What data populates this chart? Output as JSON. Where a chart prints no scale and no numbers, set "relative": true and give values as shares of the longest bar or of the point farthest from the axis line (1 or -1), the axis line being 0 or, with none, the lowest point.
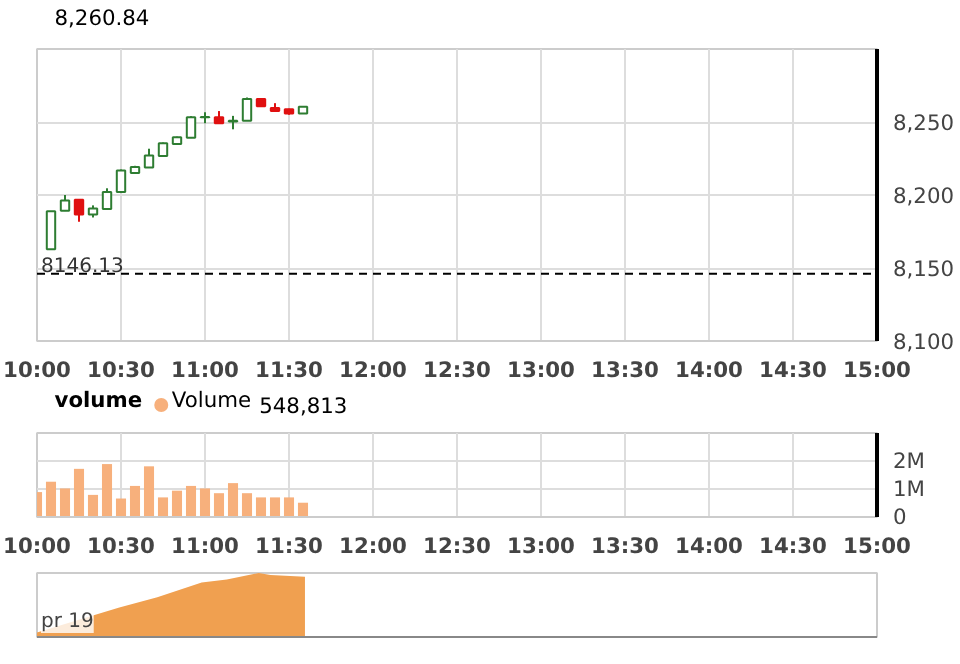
{
  "chart_data": [
    {
      "type": "candlestick",
      "x": [
        10.0833,
        10.1667,
        10.25,
        10.3333,
        10.4167,
        10.5,
        10.5833,
        10.6667,
        10.75,
        10.8333,
        10.9167,
        11.0,
        11.0833,
        11.1667,
        11.25,
        11.3333,
        11.4167,
        11.5,
        11.5833
      ],
      "ohlc": [
        [
          8162.9,
          8188.8,
          8162.9,
          8188.8
        ],
        [
          8189.2,
          8200,
          8189,
          8196.3
        ],
        [
          8196.7,
          8196.7,
          8181.7,
          8186.7
        ],
        [
          8186.7,
          8192.9,
          8184.6,
          8190.8
        ],
        [
          8190.4,
          8204.6,
          8190.4,
          8202.1
        ],
        [
          8202,
          8217.5,
          8202,
          8216.7
        ],
        [
          8215,
          8220,
          8215,
          8219.2
        ],
        [
          8218.8,
          8231.7,
          8218.8,
          8227.1
        ],
        [
          8226.7,
          8236,
          8226.7,
          8235.4
        ],
        [
          8235,
          8240,
          8235,
          8239.6
        ],
        [
          8239.2,
          8254,
          8239,
          8253.3
        ],
        [
          8253.3,
          8256.7,
          8249.2,
          8253.5
        ],
        [
          8253.3,
          8257.5,
          8249,
          8249.2
        ],
        [
          8250.4,
          8254.2,
          8245,
          8250.8
        ],
        [
          8250.8,
          8266.7,
          8250.8,
          8265.8
        ],
        [
          8265.8,
          8265.8,
          8260.8,
          8260.8
        ],
        [
          8259.6,
          8262.9,
          8257,
          8257.5
        ],
        [
          8258.8,
          8259,
          8255,
          8255.8
        ],
        [
          8255.8,
          8260.8,
          8255.8,
          8260.4
        ]
      ],
      "xlim": [
        10,
        15
      ],
      "xticks": [
        {
          "value": 10,
          "label": "10:00"
        },
        {
          "value": 10.5,
          "label": "10:30"
        },
        {
          "value": 11,
          "label": "11:00"
        },
        {
          "value": 11.5,
          "label": "11:30"
        },
        {
          "value": 12,
          "label": "12:00"
        },
        {
          "value": 12.5,
          "label": "12:30"
        },
        {
          "value": 13,
          "label": "13:00"
        },
        {
          "value": 13.5,
          "label": "13:30"
        },
        {
          "value": 14,
          "label": "14:00"
        },
        {
          "value": 14.5,
          "label": "14:30"
        },
        {
          "value": 15,
          "label": "15:00"
        }
      ],
      "ylim": [
        8100,
        8300
      ],
      "yticks": [
        {
          "value": 8100,
          "label": "8,100"
        },
        {
          "value": 8150,
          "label": "8,150"
        },
        {
          "value": 8200,
          "label": "8,200"
        },
        {
          "value": 8250,
          "label": "8,250"
        }
      ],
      "ref_lines": [
        {
          "axis": "y",
          "value": 8146.13,
          "label": "8146.13",
          "line_style": "dashed",
          "color": "#000000"
        }
      ],
      "annotations": [
        "8,260.84"
      ],
      "grid": true
    },
    {
      "type": "bar",
      "title": "volume",
      "x": [
        10.0,
        10.0833,
        10.1667,
        10.25,
        10.3333,
        10.4167,
        10.5,
        10.5833,
        10.6667,
        10.75,
        10.8333,
        10.9167,
        11.0,
        11.0833,
        11.1667,
        11.25,
        11.3333,
        11.4167,
        11.5,
        11.5833
      ],
      "series": [
        {
          "name": "Volume",
          "color": "#f7b07c",
          "values": [
            890000,
            1260000,
            1020000,
            1720000,
            790000,
            1890000,
            660000,
            1110000,
            1810000,
            700000,
            940000,
            1110000,
            1020000,
            850000,
            1210000,
            850000,
            700000,
            700000,
            700000,
            510000
          ]
        }
      ],
      "xlim": [
        10,
        15
      ],
      "xticks": [
        {
          "value": 10,
          "label": "10:00"
        },
        {
          "value": 10.5,
          "label": "10:30"
        },
        {
          "value": 11,
          "label": "11:00"
        },
        {
          "value": 11.5,
          "label": "11:30"
        },
        {
          "value": 12,
          "label": "12:00"
        },
        {
          "value": 12.5,
          "label": "12:30"
        },
        {
          "value": 13,
          "label": "13:00"
        },
        {
          "value": 13.5,
          "label": "13:30"
        },
        {
          "value": 14,
          "label": "14:00"
        },
        {
          "value": 14.5,
          "label": "14:30"
        },
        {
          "value": 15,
          "label": "15:00"
        }
      ],
      "ylim": [
        0,
        3000000
      ],
      "yticks": [
        0,
        {
          "value": 1000000,
          "label": "1M"
        },
        {
          "value": 2000000,
          "label": "2M"
        }
      ],
      "annotations": [
        "548,813"
      ],
      "legend": "top left",
      "grid": true
    },
    {
      "type": "area",
      "relative": true,
      "x": [
        10.0,
        10.264,
        10.49,
        10.716,
        10.98,
        11.13,
        11.32,
        11.39,
        11.595
      ],
      "series": [
        {
          "color": "#f0a050",
          "values": [
            0.07,
            0.28,
            0.46,
            0.62,
            0.85,
            0.9,
            1,
            0.97,
            0.94
          ]
        }
      ],
      "xlim": [
        10,
        15
      ],
      "annotations": [
        "pr 19"
      ]
    }
  ]
}
